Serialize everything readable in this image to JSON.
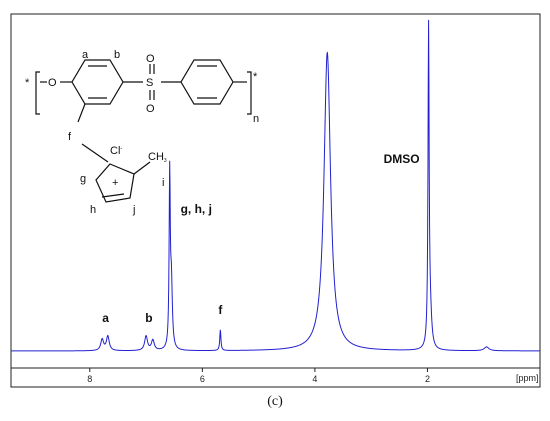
{
  "chart_data": {
    "type": "line",
    "title": "",
    "xlabel": "[ppm]",
    "ylabel": "",
    "x_reversed": true,
    "xlim": [
      9.4,
      0.0
    ],
    "ylim": [
      0,
      1.0
    ],
    "xticks": [
      8,
      6,
      4,
      2
    ],
    "x_tick_labels": [
      "8",
      "6",
      "4",
      "2"
    ],
    "line_color": "#2020d0",
    "baseline": 0.0,
    "series": [
      {
        "peaks": [
          {
            "ppm": 7.78,
            "height": 0.035,
            "width": 0.03
          },
          {
            "ppm": 7.68,
            "height": 0.045,
            "width": 0.03
          },
          {
            "ppm": 7.0,
            "height": 0.045,
            "width": 0.03
          },
          {
            "ppm": 6.88,
            "height": 0.032,
            "width": 0.03
          },
          {
            "ppm": 6.58,
            "height": 0.53,
            "width": 0.012
          },
          {
            "ppm": 6.55,
            "height": 0.2,
            "width": 0.02
          },
          {
            "ppm": 5.68,
            "height": 0.065,
            "width": 0.012
          },
          {
            "ppm": 3.78,
            "height": 0.93,
            "width": 0.07
          },
          {
            "ppm": 1.98,
            "height": 0.98,
            "width": 0.012
          },
          {
            "ppm": 1.95,
            "height": 0.1,
            "width": 0.03
          },
          {
            "ppm": 0.95,
            "height": 0.012,
            "width": 0.05
          }
        ]
      }
    ],
    "annotations": [
      {
        "text": "a",
        "ppm": 7.72
      },
      {
        "text": "b",
        "ppm": 6.95
      },
      {
        "text": "g, h, j",
        "ppm": 6.57
      },
      {
        "text": "f",
        "ppm": 5.68
      },
      {
        "text": "DMSO",
        "ppm": 1.98
      }
    ]
  },
  "structure": {
    "labels": {
      "a": "a",
      "b": "b",
      "f": "f",
      "g": "g",
      "h": "h",
      "i": "i",
      "j": "j",
      "counter_ion": "Cl",
      "charge": "-",
      "cation": "+",
      "methyl": "CH",
      "methyl_sub": "3",
      "star_left": "*",
      "star_right": "*",
      "oxygen": "O",
      "sulfur": "S",
      "sulfonyl_o_top": "O",
      "sulfonyl_o_bottom": "O",
      "repeat": "n"
    }
  },
  "caption": "(c)"
}
